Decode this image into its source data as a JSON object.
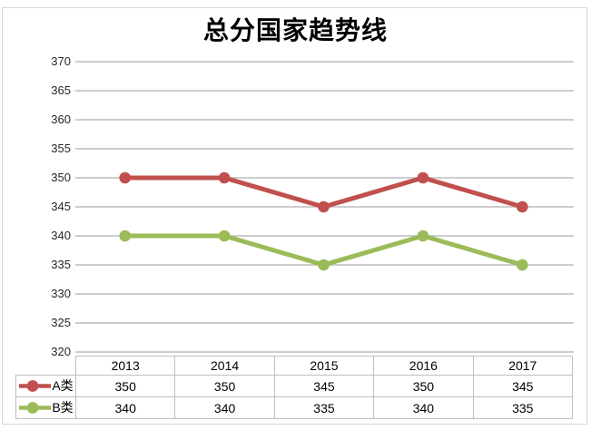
{
  "title": "总分国家趋势线",
  "chart_data": {
    "type": "line",
    "title": "总分国家趋势线",
    "categories": [
      "2013",
      "2014",
      "2015",
      "2016",
      "2017"
    ],
    "series": [
      {
        "name": "A类",
        "values": [
          350,
          350,
          345,
          350,
          345
        ],
        "color": "#C0504D"
      },
      {
        "name": "B类",
        "values": [
          340,
          340,
          335,
          340,
          335
        ],
        "color": "#9BBB59"
      }
    ],
    "ylim": [
      320,
      370
    ],
    "ytick_step": 5,
    "grid": true,
    "legend_position": "data-table-left",
    "data_table": true
  },
  "colors": {
    "series_a": "#C0504D",
    "series_b": "#9BBB59",
    "gridline": "#C6C6C6",
    "table_border": "#BFBFBF",
    "chart_border": "#D7D7D7",
    "text": "#000000",
    "axis_text": "#262626"
  }
}
